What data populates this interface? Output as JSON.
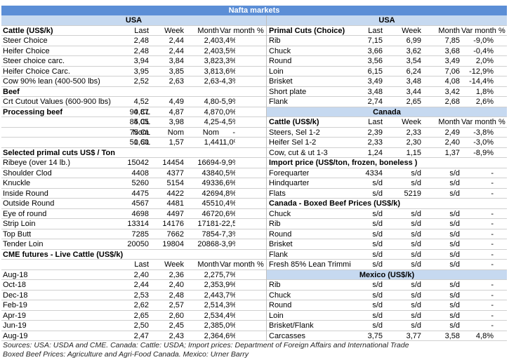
{
  "title": "Nafta markets",
  "left": {
    "region": "USA",
    "cattle": {
      "header": [
        "Cattle (US$/k)",
        "Last",
        "Week",
        "Month",
        "Var month %"
      ],
      "rows": [
        [
          "Steer Choice",
          "2,48",
          "2,44",
          "2,40",
          "3,4%"
        ],
        [
          "Heifer Choice",
          "2,48",
          "2,44",
          "2,40",
          "3,5%"
        ],
        [
          "Steer choice carc.",
          "3,94",
          "3,84",
          "3,82",
          "3,3%"
        ],
        [
          "Heifer Choice Carc.",
          "3,95",
          "3,85",
          "3,81",
          "3,6%"
        ],
        [
          "Cow 90% lean (400-500 lbs)",
          "2,52",
          "2,63",
          "2,63",
          "-4,3%"
        ]
      ]
    },
    "beef": {
      "title": "Beef",
      "rows": [
        [
          "Crt Cutout Values (600-900 lbs)",
          "4,52",
          "4,49",
          "4,80",
          "-5,9%"
        ]
      ]
    },
    "processing": {
      "title": "Processing beef",
      "rows": [
        [
          "90 CL",
          "4,87",
          "4,87",
          "4,87",
          "0,0%"
        ],
        [
          "85 CL",
          "4,05",
          "3,98",
          "4,25",
          "-4,5%"
        ],
        [
          "75 CL",
          "Nom",
          "Nom",
          "Nom",
          "-"
        ],
        [
          "50 CL",
          "1,60",
          "1,57",
          "1,44",
          "11,0%"
        ]
      ]
    },
    "primal": {
      "title": "Selected primal cuts US$ / Ton",
      "rows": [
        [
          "Ribeye (over 14 lb.)",
          "15042",
          "14454",
          "16694",
          "-9,9%"
        ],
        [
          "Shoulder Clod",
          "4408",
          "4377",
          "4384",
          "0,5%"
        ],
        [
          "Knuckle",
          "5260",
          "5154",
          "4933",
          "6,6%"
        ],
        [
          "Inside Round",
          "4475",
          "4422",
          "4269",
          "4,8%"
        ],
        [
          "Outside Round",
          "4567",
          "4481",
          "4551",
          "0,4%"
        ],
        [
          "Eye of round",
          "4698",
          "4497",
          "4672",
          "0,6%"
        ],
        [
          "Strip Loin",
          "13314",
          "14176",
          "17181",
          "-22,5%"
        ],
        [
          "Top Butt",
          "7285",
          "7662",
          "7854",
          "-7,3%"
        ],
        [
          "Tender Loin",
          "20050",
          "19804",
          "20868",
          "-3,9%"
        ]
      ]
    },
    "cme": {
      "title": "CME futures - Live Cattle (US$/k)",
      "header": [
        "Last",
        "Week",
        "Month",
        "Var month %"
      ],
      "rows": [
        [
          "Aug-18",
          "2,40",
          "2,36",
          "2,27",
          "5,7%"
        ],
        [
          "Oct-18",
          "2,44",
          "2,40",
          "2,35",
          "3,9%"
        ],
        [
          "Dec-18",
          "2,53",
          "2,48",
          "2,44",
          "3,7%"
        ],
        [
          "Feb-19",
          "2,62",
          "2,57",
          "2,51",
          "4,3%"
        ],
        [
          "Apr-19",
          "2,65",
          "2,60",
          "2,53",
          "4,4%"
        ],
        [
          "Jun-19",
          "2,50",
          "2,45",
          "2,38",
          "5,0%"
        ],
        [
          "Aug-19",
          "2,47",
          "2,43",
          "2,36",
          "4,6%"
        ]
      ]
    }
  },
  "right": {
    "region": "USA",
    "primal": {
      "header": [
        "Primal Cuts (Choice)",
        "Last",
        "Week",
        "Month",
        "Var month %"
      ],
      "rows": [
        [
          "Rib",
          "7,15",
          "6,99",
          "7,85",
          "-9,0%"
        ],
        [
          "Chuck",
          "3,66",
          "3,62",
          "3,68",
          "-0,4%"
        ],
        [
          "Round",
          "3,56",
          "3,54",
          "3,49",
          "2,0%"
        ],
        [
          "Loin",
          "6,15",
          "6,24",
          "7,06",
          "-12,9%"
        ],
        [
          "Brisket",
          "3,49",
          "3,48",
          "4,08",
          "-14,4%"
        ],
        [
          "Short plate",
          "3,48",
          "3,44",
          "3,42",
          "1,8%"
        ],
        [
          "Flank",
          "2,74",
          "2,65",
          "2,68",
          "2,6%"
        ]
      ]
    },
    "canada": {
      "region": "Canada",
      "header": [
        "Cattle (US$/k)",
        "Last",
        "Week",
        "Month",
        "Var month %"
      ],
      "rows": [
        [
          "Steers, Sel 1-2",
          "2,39",
          "2,33",
          "2,49",
          "-3,8%"
        ],
        [
          "Heifer Sel 1-2",
          "2,33",
          "2,30",
          "2,40",
          "-3,0%"
        ],
        [
          "Cow, cut & ut 1-3",
          "1,24",
          "1,15",
          "1,37",
          "-8,9%"
        ]
      ]
    },
    "import": {
      "title": "Import price (US$/ton, frozen, boneless )",
      "rows": [
        [
          "Forequarter",
          "4334",
          "s/d",
          "s/d",
          "-"
        ],
        [
          "Hindquarter",
          "s/d",
          "s/d",
          "s/d",
          "-"
        ],
        [
          "Flats",
          "s/d",
          "5219",
          "s/d",
          "-"
        ]
      ]
    },
    "boxed": {
      "title": "Canada - Boxed Beef Prices (US$/k)",
      "rows": [
        [
          "Chuck",
          "s/d",
          "s/d",
          "s/d",
          "-"
        ],
        [
          "Rib",
          "s/d",
          "s/d",
          "s/d",
          "-"
        ],
        [
          "Round",
          "s/d",
          "s/d",
          "s/d",
          "-"
        ],
        [
          "Brisket",
          "s/d",
          "s/d",
          "s/d",
          "-"
        ],
        [
          "Flank",
          "s/d",
          "s/d",
          "s/d",
          "-"
        ],
        [
          "Fresh 85% Lean Trimmi",
          "s/d",
          "s/d",
          "s/d",
          "-"
        ]
      ]
    },
    "mexico": {
      "region": "Mexico (US$/k)",
      "rows": [
        [
          "Rib",
          "s/d",
          "s/d",
          "s/d",
          "-"
        ],
        [
          "Chuck",
          "s/d",
          "s/d",
          "s/d",
          "-"
        ],
        [
          "Round",
          "s/d",
          "s/d",
          "s/d",
          "-"
        ],
        [
          "Loin",
          "s/d",
          "s/d",
          "s/d",
          "-"
        ],
        [
          "Brisket/Flank",
          "s/d",
          "s/d",
          "s/d",
          "-"
        ],
        [
          "Carcasses",
          "3,75",
          "3,77",
          "3,58",
          "4,8%"
        ]
      ]
    }
  },
  "sources": [
    "Sources: USA: USDA and CME. Canada: Cattle: USDA; Import prices: Department of Foreign Affairs and International Trade",
    "Boxed Beef Prices: Agriculture and Agri-Food Canada. Mexico: Urner Barry"
  ]
}
